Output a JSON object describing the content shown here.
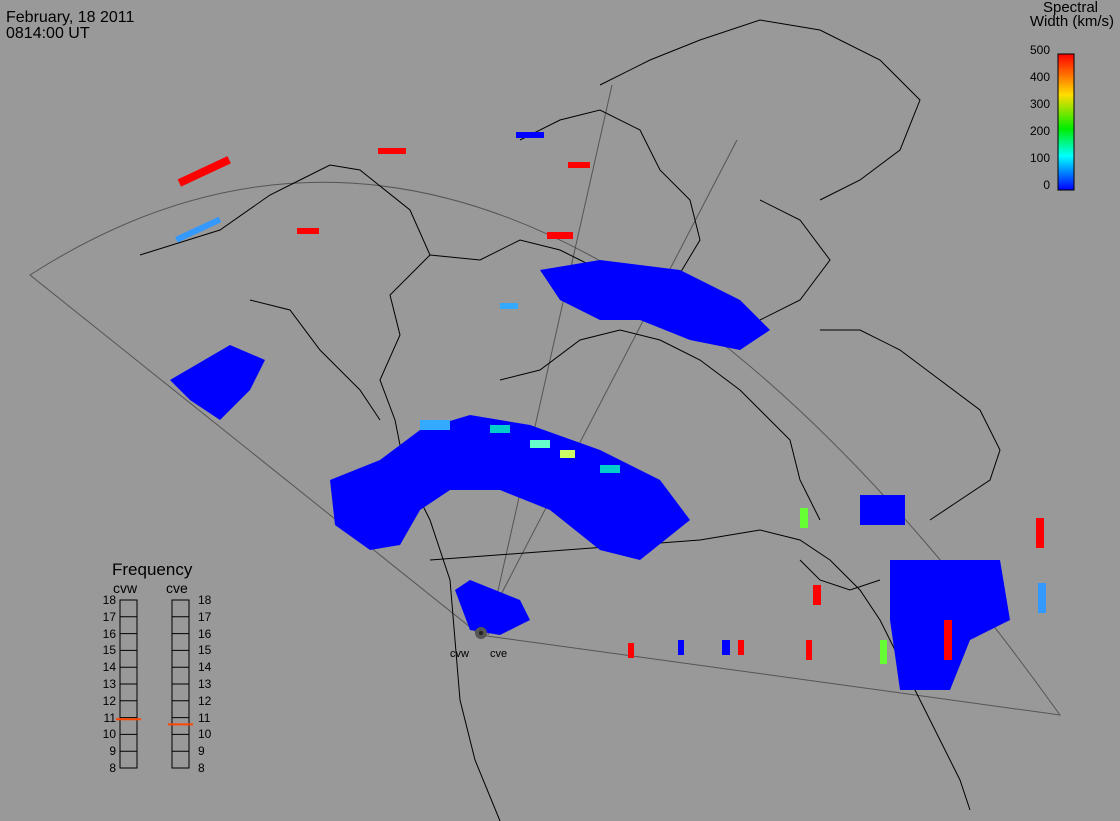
{
  "header": {
    "date": "February, 18 2011",
    "time": "0814:00 UT"
  },
  "colorbar": {
    "title_line1": "Spectral",
    "title_line2": "Width (km/s)",
    "ticks": [
      "500",
      "400",
      "300",
      "200",
      "100",
      "0"
    ],
    "colors": [
      "#ff0000",
      "#ffdd00",
      "#00ee00",
      "#00ffff",
      "#0000ff"
    ]
  },
  "frequency": {
    "title": "Frequency",
    "radar_left": "cvw",
    "radar_right": "cve",
    "scale": [
      "18",
      "17",
      "16",
      "15",
      "14",
      "13",
      "12",
      "11",
      "10",
      "9",
      "8"
    ],
    "cvw_value": 10.9,
    "cve_value": 10.6,
    "marker_color": "#ff4400"
  },
  "radars": {
    "left": "cvw",
    "right": "cve"
  },
  "colors": {
    "background": "#999999",
    "coast": "#000000",
    "fov": "#555555",
    "low": "#0000ff"
  }
}
